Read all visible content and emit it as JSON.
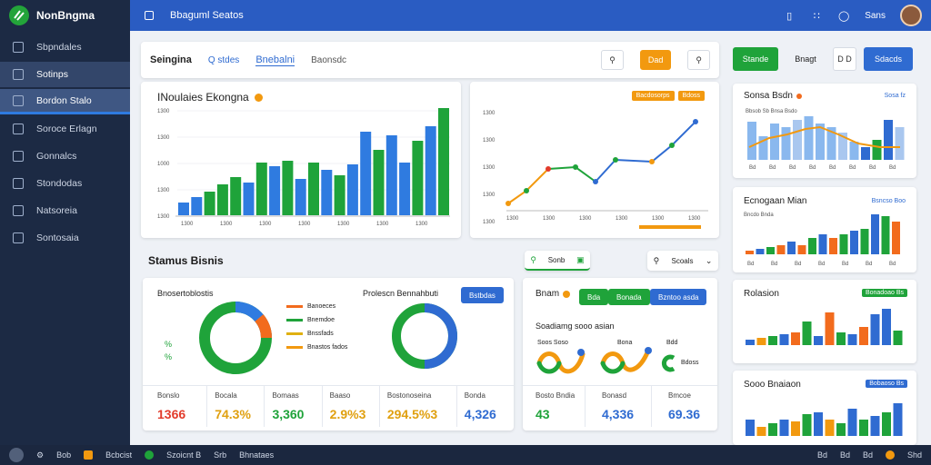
{
  "brand": {
    "name": "NonBngma"
  },
  "sidebar": {
    "items": [
      {
        "label": "Sbpndales"
      },
      {
        "label": "Sotinps"
      },
      {
        "label": "Bordon Stalo"
      },
      {
        "label": "Soroce Erlagn"
      },
      {
        "label": "Gonnalcs"
      },
      {
        "label": "Stondodas"
      },
      {
        "label": "Natsoreia"
      },
      {
        "label": "Sontosaia"
      }
    ]
  },
  "topbar": {
    "title": "Bbaguml Seatos",
    "user_label": "Sans"
  },
  "toolbar": {
    "title": "Seingina",
    "search_label": "Q stdes",
    "link_label": "Bnebalni",
    "filter_label": "Baonsdc",
    "orange_label": "Dad"
  },
  "right_toolbar": {
    "green_label": "Stande",
    "text_label": "Bnagt",
    "toggle_label": "D D",
    "blue_label": "Sdacds"
  },
  "main_chart": {
    "title": "INoulaies Ekongna",
    "y_ticks": [
      "1300",
      "1300",
      "1000",
      "1300",
      "1300"
    ],
    "x_ticks": [
      "1300",
      "1300",
      "1300",
      "1300",
      "1300",
      "1300",
      "1300"
    ]
  },
  "line_chart": {
    "badges": [
      "Bacdosorps",
      "Bdoss"
    ],
    "y_ticks": [
      "1300",
      "1300",
      "1300",
      "1300",
      "1300"
    ],
    "x_ticks": [
      "1300",
      "1300",
      "1300",
      "1300",
      "1300",
      "1300"
    ]
  },
  "section2": {
    "title": "Stamus Bisnis",
    "dropdown1": "Sonb",
    "dropdown2": "Scoals"
  },
  "donut_card": {
    "title1": "Bnosertoblostis",
    "title2": "Prolescn Bennahbuti",
    "button": "Bstbdas",
    "legend": [
      "Banoeces",
      "Bnemdoe",
      "Bnssfads",
      "Bnastos fados"
    ],
    "stats": [
      {
        "label": "Bonslo",
        "value": "1366"
      },
      {
        "label": "Bocala",
        "value": "74.3%"
      },
      {
        "label": "Bomaas",
        "value": "3,360"
      },
      {
        "label": "Baaso",
        "value": "2.9%3"
      },
      {
        "label": "Bostonoseina",
        "value": "294.5%3"
      },
      {
        "label": "Bonda",
        "value": "4,326"
      }
    ]
  },
  "status_card": {
    "title": "Bnam",
    "btn_green1": "Bda",
    "btn_green2": "Bonada",
    "btn_blue": "Bzntoo asda",
    "subtitle": "Soadiamg sooo asian",
    "labels": [
      "Soos Soso",
      "Bona",
      "Bdd",
      "Bdoss"
    ],
    "stats": [
      {
        "label": "Bosto Bndia",
        "value": "43"
      },
      {
        "label": "Bonasd",
        "value": "4,336"
      },
      {
        "label": "Bmcoe",
        "value": "69.36"
      }
    ]
  },
  "mini1": {
    "title": "Sonsa Bsdn",
    "link": "Sosa fz",
    "legend": "Bbsob Sb Bnsa Bsdo",
    "x_ticks": [
      "Bd",
      "Bd",
      "Bd",
      "Bd",
      "Bd",
      "Bd",
      "Bd",
      "Bd"
    ]
  },
  "mini2": {
    "title": "Ecnogaan Mian",
    "link": "Bsncso Boo",
    "legend": "Bncdo Bnda",
    "x_ticks": [
      "Bd",
      "Bd",
      "Bd",
      "Bd",
      "Bd",
      "Bd",
      "Bd"
    ]
  },
  "mini3": {
    "title": "Rolasion",
    "badge": "Bonadoao Bs"
  },
  "mini4": {
    "title": "Sooo Bnaiaon",
    "badge": "Bobaoso Bs"
  },
  "bottombar": {
    "items": [
      "Bob",
      "Bcbcist",
      "Szoicnt B",
      "Srb",
      "Bhnataes"
    ],
    "right": [
      "Bd",
      "Bd",
      "Bd",
      "Shd"
    ]
  },
  "colors": {
    "blue": "#2f7be0",
    "green": "#1fa33a",
    "orange": "#f2990f",
    "teal": "#18a6c9",
    "sidebar": "#1c2a44",
    "topbar": "#2a5cc2"
  }
}
